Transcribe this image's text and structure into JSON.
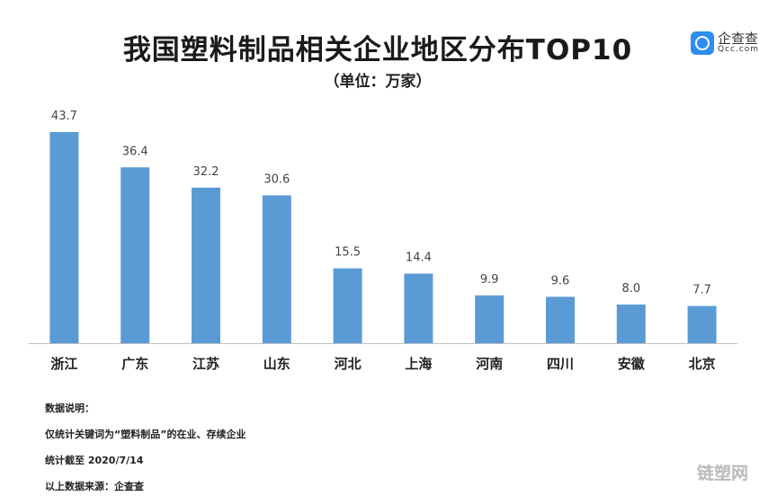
{
  "chart_data": {
    "type": "bar",
    "title": "我国塑料制品相关企业地区分布TOP10",
    "subtitle": "（单位：万家）",
    "categories": [
      "浙江",
      "广东",
      "江苏",
      "山东",
      "河北",
      "上海",
      "河南",
      "四川",
      "安徽",
      "北京"
    ],
    "values": [
      43.7,
      36.4,
      32.2,
      30.6,
      15.5,
      14.4,
      9.9,
      9.6,
      8.0,
      7.7
    ],
    "value_labels": [
      "43.7",
      "36.4",
      "32.2",
      "30.6",
      "15.5",
      "14.4",
      "9.9",
      "9.6",
      "8.0",
      "7.7"
    ],
    "xlabel": "",
    "ylabel": "",
    "ylim": [
      0,
      45
    ],
    "grid": false,
    "bar_color": "#5b9bd5"
  },
  "logo": {
    "cn": "企查查",
    "en": "Qcc.com"
  },
  "notes": [
    "数据说明：",
    "仅统计关键词为“塑料制品”的在业、存续企业",
    "统计截至 2020/7/14",
    "以上数据来源：企查查"
  ],
  "watermark": "链塑网"
}
